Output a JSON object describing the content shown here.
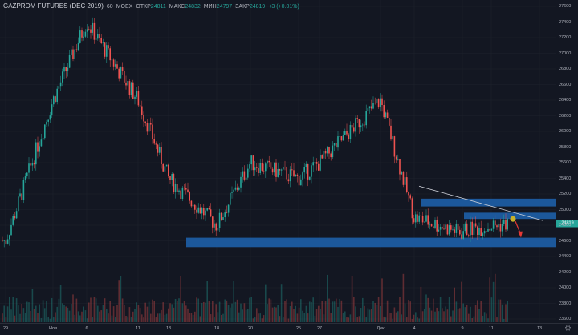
{
  "legend": {
    "title": "GAZPROM FUTURES (DEC 2019)",
    "interval": "60",
    "exchange": "MOEX",
    "open_label": "ОТКР",
    "open": "24811",
    "high_label": "МАКС",
    "high": "24832",
    "low_label": "МИН",
    "low": "24797",
    "close_label": "ЗАКР",
    "close": "24819",
    "change": "+3 (+0.01%)"
  },
  "last_price": "24819",
  "colors": {
    "up": "#26a69a",
    "down": "#ef5350",
    "zone": "#1e5fa8",
    "background": "#131722"
  },
  "chart_data": {
    "type": "candlestick",
    "title": "GAZPROM FUTURES (DEC 2019)",
    "y_ticks": [
      27600,
      27400,
      27200,
      27000,
      26800,
      26600,
      26400,
      26200,
      26000,
      25800,
      25600,
      25400,
      25200,
      25000,
      24800,
      24600,
      24400,
      24200,
      24000,
      23800,
      23600
    ],
    "ylim": [
      23600,
      27600
    ],
    "x_ticks": [
      "29",
      "Ноя",
      "6",
      "11",
      "13",
      "18",
      "20",
      "25",
      "27",
      "Дек",
      "4",
      "9",
      "11",
      "13"
    ],
    "price_path": [
      {
        "x": "29",
        "price": 24600
      },
      {
        "x": "Ноя",
        "price": 26400
      },
      {
        "x": "6",
        "price": 27400
      },
      {
        "x": "11",
        "price": 26400
      },
      {
        "x": "13",
        "price": 25400
      },
      {
        "x": "18",
        "price": 24800
      },
      {
        "x": "20",
        "price": 25600
      },
      {
        "x": "25",
        "price": 25400
      },
      {
        "x": "27",
        "price": 25600
      },
      {
        "x": "Дек",
        "price": 26400
      },
      {
        "x": "4",
        "price": 24900
      },
      {
        "x": "9",
        "price": 24700
      },
      {
        "x": "11",
        "price": 24700
      },
      {
        "x": "11",
        "price": 24819
      }
    ],
    "zones": [
      {
        "from": 24520,
        "to": 24640
      },
      {
        "from": 24880,
        "to": 24960
      },
      {
        "from": 25040,
        "to": 25140
      }
    ],
    "trendline": [
      {
        "x": "4",
        "price": 25300
      },
      {
        "x": "13",
        "price": 24860
      }
    ],
    "volume": "histogram",
    "grid": true
  }
}
